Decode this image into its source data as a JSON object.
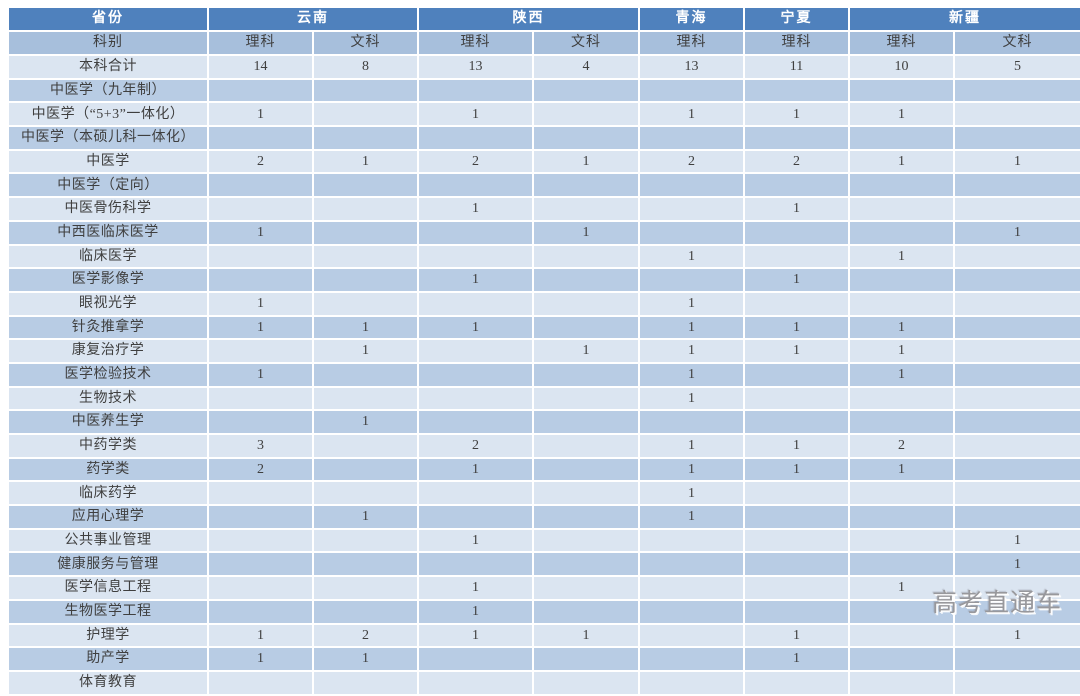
{
  "table": {
    "corner_label": "省份",
    "category_label": "科别",
    "provinces": [
      {
        "name": "云南",
        "colspan": 2
      },
      {
        "name": "陕西",
        "colspan": 2
      },
      {
        "name": "青海",
        "colspan": 1
      },
      {
        "name": "宁夏",
        "colspan": 1
      },
      {
        "name": "新疆",
        "colspan": 2
      }
    ],
    "tracks": [
      "理科",
      "文科",
      "理科",
      "文科",
      "理科",
      "理科",
      "理科",
      "文科"
    ],
    "rows": [
      {
        "label": "本科合计",
        "values": [
          "14",
          "8",
          "13",
          "4",
          "13",
          "11",
          "10",
          "5"
        ]
      },
      {
        "label": "中医学（九年制）",
        "values": [
          "",
          "",
          "",
          "",
          "",
          "",
          "",
          ""
        ]
      },
      {
        "label": "中医学（“5+3”一体化）",
        "values": [
          "1",
          "",
          "1",
          "",
          "1",
          "1",
          "1",
          ""
        ]
      },
      {
        "label": "中医学（本硕儿科一体化）",
        "values": [
          "",
          "",
          "",
          "",
          "",
          "",
          "",
          ""
        ]
      },
      {
        "label": "中医学",
        "values": [
          "2",
          "1",
          "2",
          "1",
          "2",
          "2",
          "1",
          "1"
        ]
      },
      {
        "label": "中医学（定向）",
        "values": [
          "",
          "",
          "",
          "",
          "",
          "",
          "",
          ""
        ]
      },
      {
        "label": "中医骨伤科学",
        "values": [
          "",
          "",
          "1",
          "",
          "",
          "1",
          "",
          ""
        ]
      },
      {
        "label": "中西医临床医学",
        "values": [
          "1",
          "",
          "",
          "1",
          "",
          "",
          "",
          "1"
        ]
      },
      {
        "label": "临床医学",
        "values": [
          "",
          "",
          "",
          "",
          "1",
          "",
          "1",
          ""
        ]
      },
      {
        "label": "医学影像学",
        "values": [
          "",
          "",
          "1",
          "",
          "",
          "1",
          "",
          ""
        ]
      },
      {
        "label": "眼视光学",
        "values": [
          "1",
          "",
          "",
          "",
          "1",
          "",
          "",
          ""
        ]
      },
      {
        "label": "针灸推拿学",
        "values": [
          "1",
          "1",
          "1",
          "",
          "1",
          "1",
          "1",
          ""
        ]
      },
      {
        "label": "康复治疗学",
        "values": [
          "",
          "1",
          "",
          "1",
          "1",
          "1",
          "1",
          ""
        ]
      },
      {
        "label": "医学检验技术",
        "values": [
          "1",
          "",
          "",
          "",
          "1",
          "",
          "1",
          ""
        ]
      },
      {
        "label": "生物技术",
        "values": [
          "",
          "",
          "",
          "",
          "1",
          "",
          "",
          ""
        ]
      },
      {
        "label": "中医养生学",
        "values": [
          "",
          "1",
          "",
          "",
          "",
          "",
          "",
          ""
        ]
      },
      {
        "label": "中药学类",
        "values": [
          "3",
          "",
          "2",
          "",
          "1",
          "1",
          "2",
          ""
        ]
      },
      {
        "label": "药学类",
        "values": [
          "2",
          "",
          "1",
          "",
          "1",
          "1",
          "1",
          ""
        ]
      },
      {
        "label": "临床药学",
        "values": [
          "",
          "",
          "",
          "",
          "1",
          "",
          "",
          ""
        ]
      },
      {
        "label": "应用心理学",
        "values": [
          "",
          "1",
          "",
          "",
          "1",
          "",
          "",
          ""
        ]
      },
      {
        "label": "公共事业管理",
        "values": [
          "",
          "",
          "1",
          "",
          "",
          "",
          "",
          "1"
        ]
      },
      {
        "label": "健康服务与管理",
        "values": [
          "",
          "",
          "",
          "",
          "",
          "",
          "",
          "1"
        ]
      },
      {
        "label": "医学信息工程",
        "values": [
          "",
          "",
          "1",
          "",
          "",
          "",
          "1",
          ""
        ]
      },
      {
        "label": "生物医学工程",
        "values": [
          "",
          "",
          "1",
          "",
          "",
          "",
          "",
          ""
        ]
      },
      {
        "label": "护理学",
        "values": [
          "1",
          "2",
          "1",
          "1",
          "",
          "1",
          "",
          "1"
        ]
      },
      {
        "label": "助产学",
        "values": [
          "1",
          "1",
          "",
          "",
          "",
          "1",
          "",
          ""
        ]
      },
      {
        "label": "体育教育",
        "values": [
          "",
          "",
          "",
          "",
          "",
          "",
          "",
          ""
        ]
      }
    ]
  },
  "watermark": {
    "text": "高考直通车"
  },
  "colors": {
    "header_bg": "#4F81BD",
    "header_text": "#FFFFFF",
    "subheader_bg": "#A7BFDC",
    "row_light_bg": "#DBE5F1",
    "row_dark_bg": "#B8CCE4",
    "cell_text": "#3F3F3F",
    "watermark_text": "#98989C"
  }
}
